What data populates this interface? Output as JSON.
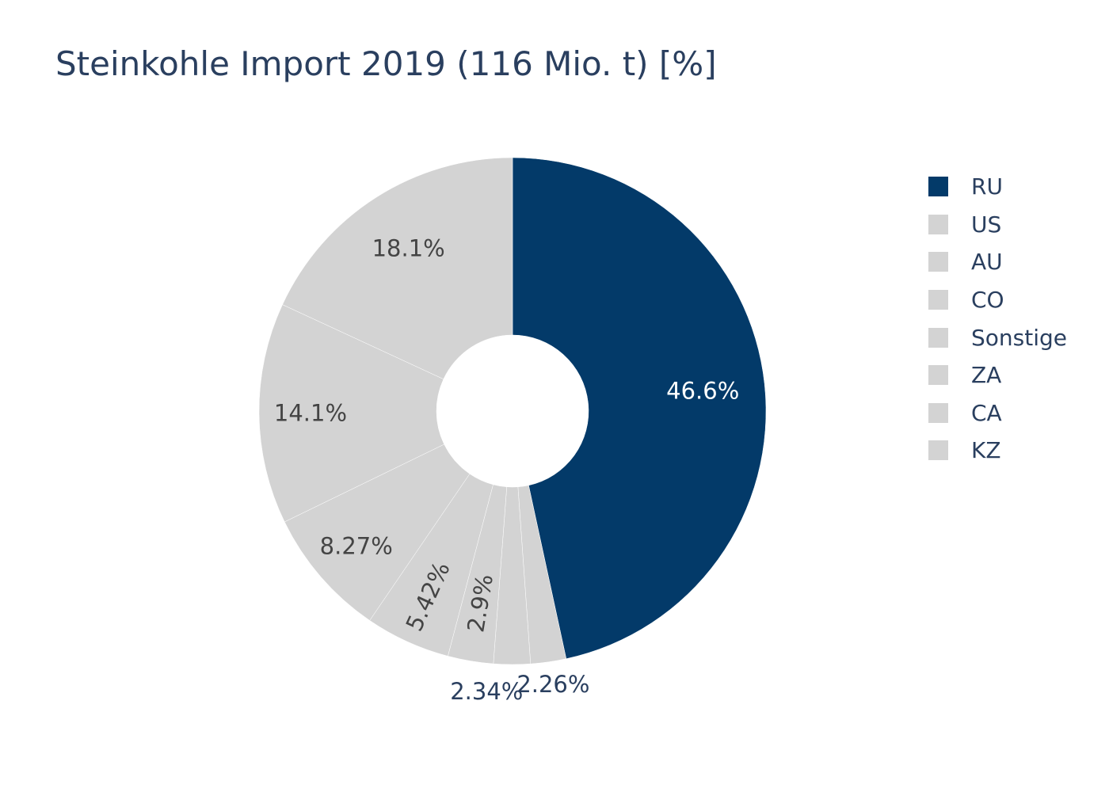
{
  "chart_data": {
    "type": "pie",
    "hole": true,
    "title": "Steinkohle Import 2019 (116 Mio. t) [%]",
    "categories": [
      "RU",
      "US",
      "AU",
      "CO",
      "Sonstige",
      "ZA",
      "CA",
      "KZ"
    ],
    "values": [
      46.6,
      18.1,
      14.1,
      8.27,
      5.42,
      2.9,
      2.34,
      2.26
    ],
    "value_labels": [
      "46.6%",
      "18.1%",
      "14.1%",
      "8.27%",
      "5.42%",
      "2.9%",
      "2.34%",
      "2.26%"
    ],
    "slice_order_clockwise_from_top": [
      "RU",
      "KZ",
      "CA",
      "ZA",
      "Sonstige",
      "CO",
      "AU",
      "US"
    ],
    "colors": {
      "RU": "#033a69",
      "US": "#d3d3d3",
      "AU": "#d3d3d3",
      "CO": "#d3d3d3",
      "Sonstige": "#d3d3d3",
      "ZA": "#d3d3d3",
      "CA": "#d3d3d3",
      "KZ": "#d3d3d3"
    },
    "label_colors": {
      "inside_dark_slice": "#ffffff",
      "inside_light_slice": "#444444",
      "outside": "#2a3f5f"
    },
    "legend_placement": "right",
    "legend": [
      "RU",
      "US",
      "AU",
      "CO",
      "Sonstige",
      "ZA",
      "CA",
      "KZ"
    ]
  }
}
